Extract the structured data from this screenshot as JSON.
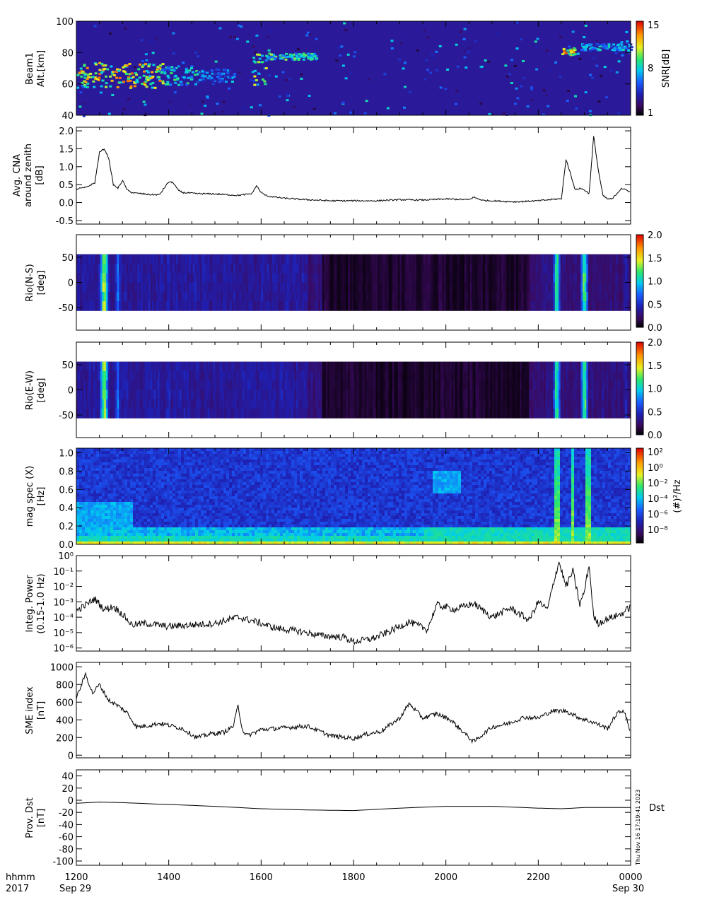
{
  "time_axis": {
    "ticks": [
      "1200",
      "1400",
      "1600",
      "1800",
      "2000",
      "2200",
      "0000"
    ],
    "tick_hours": [
      12,
      14,
      16,
      18,
      20,
      22,
      24
    ],
    "range_hours": [
      12,
      24
    ],
    "row_label_1": "hhmm",
    "row_label_2": "2017",
    "start_date": "Sep 29",
    "end_date": "Sep 30"
  },
  "side_text": {
    "dst_tag": "Dst",
    "stamp": "Thu Nov 16 17:19:41 2023"
  },
  "colors": {
    "line": "#000000",
    "colormap": [
      "#000000",
      "#3a0a5e",
      "#1f1fb0",
      "#1a5cff",
      "#00ccee",
      "#2ee86a",
      "#e8f020",
      "#ff9a00",
      "#e00000"
    ]
  },
  "chart_data": [
    {
      "type": "heatmap",
      "panel": "beam1",
      "ylabel": [
        "Beam1",
        "Alt.[km]"
      ],
      "yticks": [
        40,
        60,
        80,
        100
      ],
      "ylim": [
        40,
        100
      ],
      "colorbar": {
        "label": "SNR[dB]",
        "ticks": [
          "15",
          "8",
          "1"
        ],
        "range": [
          1,
          15
        ]
      },
      "features": [
        {
          "x_hours": [
            12.0,
            13.9
          ],
          "y_km": [
            58,
            74
          ],
          "snr": 14
        },
        {
          "x_hours": [
            13.8,
            14.6
          ],
          "y_km": [
            60,
            72
          ],
          "snr": 10
        },
        {
          "x_hours": [
            14.6,
            15.4
          ],
          "y_km": [
            62,
            70
          ],
          "snr": 8
        },
        {
          "x_hours": [
            15.8,
            16.1
          ],
          "y_km": [
            60,
            80
          ],
          "snr": 12
        },
        {
          "x_hours": [
            16.1,
            17.2
          ],
          "y_km": [
            76,
            80
          ],
          "snr": 11
        },
        {
          "x_hours": [
            22.5,
            22.8
          ],
          "y_km": [
            79,
            84
          ],
          "snr": 15
        },
        {
          "x_hours": [
            22.9,
            24.0
          ],
          "y_km": [
            82,
            86
          ],
          "snr": 9
        }
      ]
    },
    {
      "type": "line",
      "panel": "cna",
      "ylabel": [
        "Avg. CNA",
        "around zenith",
        "[dB]"
      ],
      "yticks": [
        "-0.5",
        "0.0",
        "0.5",
        "1.0",
        "1.5",
        "2.0"
      ],
      "ylim": [
        -0.6,
        2.1
      ],
      "x_hours": [
        12.0,
        12.2,
        12.4,
        12.5,
        12.6,
        12.7,
        12.8,
        12.9,
        13.0,
        13.1,
        13.2,
        13.3,
        13.4,
        13.6,
        13.8,
        13.9,
        14.0,
        14.1,
        14.2,
        14.3,
        14.6,
        15.0,
        15.5,
        15.8,
        15.9,
        16.0,
        16.1,
        16.2,
        16.5,
        17.0,
        17.5,
        18.0,
        18.5,
        19.0,
        19.5,
        20.0,
        20.5,
        20.6,
        20.8,
        21.0,
        21.5,
        22.0,
        22.4,
        22.5,
        22.6,
        22.7,
        22.8,
        22.9,
        23.0,
        23.1,
        23.2,
        23.3,
        23.4,
        23.5,
        23.6,
        23.8,
        24.0
      ],
      "values": [
        0.38,
        0.42,
        0.55,
        1.4,
        1.5,
        1.25,
        0.5,
        0.4,
        0.62,
        0.35,
        0.28,
        0.26,
        0.25,
        0.22,
        0.22,
        0.4,
        0.58,
        0.55,
        0.35,
        0.28,
        0.25,
        0.24,
        0.2,
        0.25,
        0.47,
        0.28,
        0.2,
        0.17,
        0.12,
        0.08,
        0.05,
        0.05,
        0.05,
        0.08,
        0.07,
        0.1,
        0.08,
        0.15,
        0.06,
        0.05,
        0.02,
        0.05,
        0.1,
        0.1,
        1.2,
        0.8,
        0.35,
        0.4,
        0.35,
        0.25,
        1.85,
        0.9,
        0.2,
        0.1,
        0.1,
        0.4,
        0.3
      ]
    },
    {
      "type": "heatmap",
      "panel": "rio_ns",
      "ylabel": [
        "Rio(N-S)",
        "[deg]"
      ],
      "yticks": [
        "-50",
        "0",
        "50"
      ],
      "ylim": [
        -95,
        95
      ],
      "data_y_range": [
        -56,
        56
      ],
      "colorbar": {
        "label": "",
        "ticks": [
          "2.0",
          "1.5",
          "1.0",
          "0.5",
          "0.0"
        ],
        "range": [
          0,
          2
        ]
      }
    },
    {
      "type": "heatmap",
      "panel": "rio_ew",
      "ylabel": [
        "Rio(E-W)",
        "[deg]"
      ],
      "yticks": [
        "-50",
        "0",
        "50"
      ],
      "ylim": [
        -95,
        95
      ],
      "data_y_range": [
        -56,
        56
      ],
      "colorbar": {
        "label": "",
        "ticks": [
          "2.0",
          "1.5",
          "1.0",
          "0.5",
          "0.0"
        ],
        "range": [
          0,
          2
        ]
      }
    },
    {
      "type": "heatmap",
      "panel": "mag_spec",
      "ylabel": [
        "mag spec (X)",
        "[Hz]"
      ],
      "yticks": [
        "0.0",
        "0.2",
        "0.4",
        "0.6",
        "0.8",
        "1.0"
      ],
      "ylim": [
        0,
        1.05
      ],
      "colorbar": {
        "label": "(#)²/Hz",
        "ticks": [
          "10²",
          "10⁰",
          "10⁻²",
          "10⁻⁴",
          "10⁻⁶",
          "10⁻⁸"
        ],
        "range_log": [
          -9,
          3
        ]
      }
    },
    {
      "type": "line",
      "panel": "integ_power",
      "ylabel": [
        "Integ. Power",
        "(0.15-1.0 Hz)"
      ],
      "yticks": [
        "10⁰",
        "10⁻¹",
        "10⁻²",
        "10⁻³",
        "10⁻⁴",
        "10⁻⁵",
        "10⁻⁶"
      ],
      "ylim_log10": [
        -6.2,
        0
      ],
      "x_hours": [
        12.0,
        12.2,
        12.4,
        12.6,
        12.8,
        13.0,
        13.2,
        13.5,
        14.0,
        14.5,
        15.0,
        15.5,
        15.9,
        16.3,
        16.8,
        17.3,
        17.8,
        18.0,
        18.4,
        18.8,
        19.2,
        19.6,
        19.8,
        20.2,
        20.6,
        21.0,
        21.4,
        21.8,
        22.0,
        22.2,
        22.35,
        22.45,
        22.6,
        22.75,
        22.9,
        23.0,
        23.1,
        23.2,
        23.3,
        23.5,
        23.8,
        24.0
      ],
      "values_log10": [
        -3.6,
        -3.2,
        -2.8,
        -3.5,
        -3.3,
        -3.8,
        -4.5,
        -4.4,
        -4.6,
        -4.5,
        -4.4,
        -4.0,
        -4.3,
        -4.7,
        -4.9,
        -5.2,
        -5.3,
        -5.6,
        -5.4,
        -4.9,
        -4.3,
        -4.8,
        -3.2,
        -3.5,
        -3.1,
        -4.0,
        -3.4,
        -4.2,
        -3.0,
        -3.5,
        -1.5,
        -0.4,
        -2.0,
        -1.0,
        -3.2,
        -2.3,
        -0.6,
        -4.0,
        -4.4,
        -4.1,
        -3.8,
        -3.3
      ]
    },
    {
      "type": "line",
      "panel": "sme",
      "ylabel": [
        "SME index",
        "[nT]"
      ],
      "yticks": [
        "0",
        "200",
        "400",
        "600",
        "800",
        "1000"
      ],
      "ylim": [
        -30,
        1050
      ],
      "x_hours": [
        12.0,
        12.1,
        12.2,
        12.35,
        12.5,
        12.7,
        12.9,
        13.1,
        13.3,
        13.5,
        13.8,
        14.0,
        14.3,
        14.6,
        14.9,
        15.2,
        15.4,
        15.5,
        15.6,
        15.7,
        16.0,
        16.5,
        17.0,
        17.5,
        18.0,
        18.3,
        18.6,
        19.0,
        19.2,
        19.25,
        19.5,
        19.8,
        20.1,
        20.5,
        20.6,
        21.0,
        21.3,
        21.7,
        22.0,
        22.3,
        22.6,
        22.9,
        23.2,
        23.5,
        23.7,
        23.85,
        24.0
      ],
      "values": [
        650,
        780,
        920,
        700,
        800,
        620,
        560,
        480,
        320,
        330,
        360,
        340,
        300,
        200,
        240,
        260,
        330,
        560,
        280,
        220,
        290,
        310,
        330,
        220,
        190,
        240,
        270,
        420,
        580,
        560,
        420,
        470,
        400,
        200,
        150,
        320,
        350,
        430,
        420,
        500,
        500,
        420,
        370,
        300,
        470,
        510,
        260
      ]
    },
    {
      "type": "line",
      "panel": "dst",
      "ylabel": [
        "Prov. Dst",
        "[nT]"
      ],
      "yticks": [
        "-100",
        "-80",
        "-60",
        "-40",
        "-20",
        "0",
        "20",
        "40"
      ],
      "ylim": [
        -107,
        50
      ],
      "x_hours": [
        12.0,
        12.5,
        13.0,
        14.0,
        15.0,
        16.0,
        17.0,
        18.0,
        19.0,
        20.0,
        21.0,
        22.0,
        22.5,
        23.0,
        24.0
      ],
      "values": [
        -5,
        -3,
        -4,
        -7,
        -10,
        -14,
        -16,
        -17,
        -13,
        -10,
        -10,
        -13,
        -14,
        -12,
        -12
      ]
    }
  ]
}
